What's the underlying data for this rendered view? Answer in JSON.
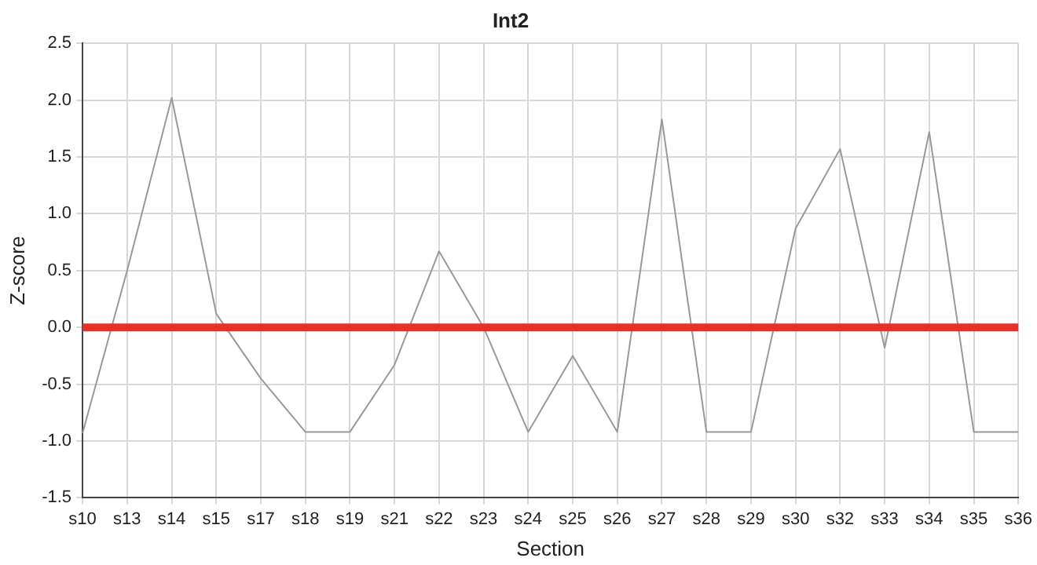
{
  "chart_data": {
    "type": "line",
    "title": "Int2",
    "xlabel": "Section",
    "ylabel": "Z-score",
    "categories": [
      "s10",
      "s13",
      "s14",
      "s15",
      "s17",
      "s18",
      "s19",
      "s21",
      "s22",
      "s23",
      "s24",
      "s25",
      "s26",
      "s27",
      "s28",
      "s29",
      "s30",
      "s32",
      "s33",
      "s34",
      "s35",
      "s36"
    ],
    "series": [
      {
        "color": "#999999",
        "values": [
          -0.93,
          0.5,
          2.02,
          0.12,
          -0.45,
          -0.92,
          -0.92,
          -0.33,
          0.67,
          0.0,
          -0.92,
          -0.25,
          -0.92,
          1.83,
          -0.92,
          -0.92,
          0.87,
          1.57,
          -0.18,
          1.72,
          -0.92,
          -0.92
        ]
      }
    ],
    "ylim": [
      -1.5,
      2.5
    ],
    "yticks": [
      {
        "value": -1.5,
        "label": "-1.5"
      },
      {
        "value": -1,
        "label": "-1.0"
      },
      {
        "value": -0.5,
        "label": "-0.5"
      },
      {
        "value": 0,
        "label": "0.0"
      },
      {
        "value": 0.5,
        "label": "0.5"
      },
      {
        "value": 1,
        "label": "1.0"
      },
      {
        "value": 1.5,
        "label": "1.5"
      },
      {
        "value": 2,
        "label": "2.0"
      },
      {
        "value": 2.5,
        "label": "2.5"
      }
    ],
    "ref_lines": [
      {
        "axis": "y",
        "value": 0,
        "color": "#e8302a"
      }
    ],
    "grid": true,
    "legend": false,
    "marker": "none",
    "line_style": "solid"
  }
}
